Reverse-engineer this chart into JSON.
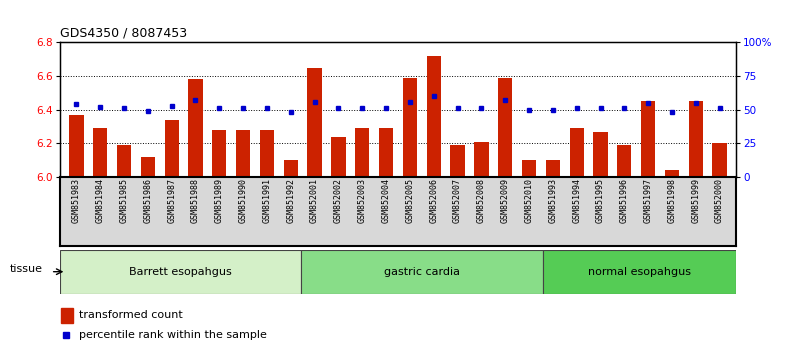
{
  "title": "GDS4350 / 8087453",
  "samples": [
    "GSM851983",
    "GSM851984",
    "GSM851985",
    "GSM851986",
    "GSM851987",
    "GSM851988",
    "GSM851989",
    "GSM851990",
    "GSM851991",
    "GSM851992",
    "GSM852001",
    "GSM852002",
    "GSM852003",
    "GSM852004",
    "GSM852005",
    "GSM852006",
    "GSM852007",
    "GSM852008",
    "GSM852009",
    "GSM852010",
    "GSM851993",
    "GSM851994",
    "GSM851995",
    "GSM851996",
    "GSM851997",
    "GSM851998",
    "GSM851999",
    "GSM852000"
  ],
  "red_bars": [
    6.37,
    6.29,
    6.19,
    6.12,
    6.34,
    6.58,
    6.28,
    6.28,
    6.28,
    6.1,
    6.65,
    6.24,
    6.29,
    6.29,
    6.59,
    6.72,
    6.19,
    6.21,
    6.59,
    6.1,
    6.1,
    6.29,
    6.27,
    6.19,
    6.45,
    6.04,
    6.45,
    6.2
  ],
  "blue_dots": [
    54,
    52,
    51,
    49,
    53,
    57,
    51,
    51,
    51,
    48,
    56,
    51,
    51,
    51,
    56,
    60,
    51,
    51,
    57,
    50,
    50,
    51,
    51,
    51,
    55,
    48,
    55,
    51
  ],
  "groups": [
    {
      "label": "Barrett esopahgus",
      "start": 0,
      "end": 10,
      "color": "#d4f0c8"
    },
    {
      "label": "gastric cardia",
      "start": 10,
      "end": 20,
      "color": "#88dd88"
    },
    {
      "label": "normal esopahgus",
      "start": 20,
      "end": 28,
      "color": "#55cc55"
    }
  ],
  "ylim_left": [
    6.0,
    6.8
  ],
  "ylim_right": [
    0,
    100
  ],
  "yticks_left": [
    6.0,
    6.2,
    6.4,
    6.6,
    6.8
  ],
  "yticks_right": [
    0,
    25,
    50,
    75,
    100
  ],
  "ytick_labels_right": [
    "0",
    "25",
    "50",
    "75",
    "100%"
  ],
  "bar_color": "#cc2200",
  "dot_color": "#0000cc",
  "legend_items": [
    "transformed count",
    "percentile rank within the sample"
  ],
  "tissue_label": "tissue",
  "xtick_bg": "#d8d8d8",
  "baseline": 6.0
}
